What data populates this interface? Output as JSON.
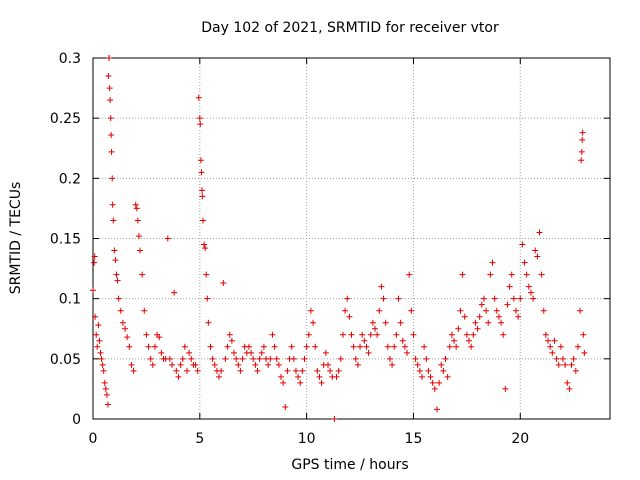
{
  "chart_data": {
    "type": "scatter",
    "title": "Day 102 of 2021, SRMTID for receiver vtor",
    "xlabel": "GPS time / hours",
    "ylabel": "SRMTID / TECUs",
    "xlim": [
      0,
      24.2
    ],
    "ylim": [
      0,
      0.3
    ],
    "x_ticks": [
      0,
      5,
      10,
      15,
      20
    ],
    "x_tick_labels": [
      "0",
      "5",
      "10",
      "15",
      "20"
    ],
    "y_ticks": [
      0,
      0.05,
      0.1,
      0.15,
      0.2,
      0.25,
      0.3
    ],
    "y_tick_labels": [
      "0",
      "0.05",
      "0.1",
      "0.15",
      "0.2",
      "0.25",
      "0.3"
    ],
    "grid": true,
    "marker": "+",
    "series": [
      {
        "name": "SRMTID",
        "color": "#e00000",
        "points": [
          [
            0.0,
            0.107
          ],
          [
            0.05,
            0.13
          ],
          [
            0.08,
            0.135
          ],
          [
            0.1,
            0.085
          ],
          [
            0.15,
            0.07
          ],
          [
            0.2,
            0.06
          ],
          [
            0.25,
            0.078
          ],
          [
            0.3,
            0.065
          ],
          [
            0.35,
            0.055
          ],
          [
            0.4,
            0.05
          ],
          [
            0.45,
            0.045
          ],
          [
            0.5,
            0.04
          ],
          [
            0.55,
            0.03
          ],
          [
            0.6,
            0.025
          ],
          [
            0.65,
            0.02
          ],
          [
            0.7,
            0.012
          ],
          [
            0.72,
            0.285
          ],
          [
            0.75,
            0.3
          ],
          [
            0.78,
            0.275
          ],
          [
            0.8,
            0.265
          ],
          [
            0.83,
            0.25
          ],
          [
            0.85,
            0.236
          ],
          [
            0.87,
            0.222
          ],
          [
            0.9,
            0.2
          ],
          [
            0.92,
            0.178
          ],
          [
            0.95,
            0.165
          ],
          [
            1.0,
            0.14
          ],
          [
            1.05,
            0.132
          ],
          [
            1.1,
            0.12
          ],
          [
            1.15,
            0.115
          ],
          [
            1.2,
            0.1
          ],
          [
            1.3,
            0.09
          ],
          [
            1.4,
            0.08
          ],
          [
            1.5,
            0.075
          ],
          [
            1.6,
            0.068
          ],
          [
            1.7,
            0.06
          ],
          [
            1.8,
            0.045
          ],
          [
            1.9,
            0.04
          ],
          [
            2.0,
            0.178
          ],
          [
            2.05,
            0.175
          ],
          [
            2.1,
            0.165
          ],
          [
            2.15,
            0.152
          ],
          [
            2.2,
            0.14
          ],
          [
            2.3,
            0.12
          ],
          [
            2.4,
            0.09
          ],
          [
            2.5,
            0.07
          ],
          [
            2.6,
            0.06
          ],
          [
            2.7,
            0.05
          ],
          [
            2.8,
            0.045
          ],
          [
            2.9,
            0.06
          ],
          [
            3.0,
            0.07
          ],
          [
            3.1,
            0.068
          ],
          [
            3.2,
            0.055
          ],
          [
            3.3,
            0.05
          ],
          [
            3.4,
            0.05
          ],
          [
            3.5,
            0.15
          ],
          [
            3.6,
            0.05
          ],
          [
            3.7,
            0.045
          ],
          [
            3.8,
            0.105
          ],
          [
            3.9,
            0.04
          ],
          [
            4.0,
            0.035
          ],
          [
            4.1,
            0.045
          ],
          [
            4.2,
            0.05
          ],
          [
            4.3,
            0.06
          ],
          [
            4.4,
            0.04
          ],
          [
            4.5,
            0.055
          ],
          [
            4.6,
            0.05
          ],
          [
            4.7,
            0.045
          ],
          [
            4.8,
            0.045
          ],
          [
            4.9,
            0.04
          ],
          [
            4.95,
            0.267
          ],
          [
            5.0,
            0.25
          ],
          [
            5.02,
            0.245
          ],
          [
            5.05,
            0.215
          ],
          [
            5.08,
            0.205
          ],
          [
            5.1,
            0.19
          ],
          [
            5.12,
            0.185
          ],
          [
            5.15,
            0.165
          ],
          [
            5.2,
            0.145
          ],
          [
            5.25,
            0.142
          ],
          [
            5.3,
            0.12
          ],
          [
            5.35,
            0.1
          ],
          [
            5.4,
            0.08
          ],
          [
            5.5,
            0.06
          ],
          [
            5.6,
            0.05
          ],
          [
            5.7,
            0.045
          ],
          [
            5.8,
            0.04
          ],
          [
            5.9,
            0.035
          ],
          [
            6.0,
            0.04
          ],
          [
            6.1,
            0.113
          ],
          [
            6.2,
            0.05
          ],
          [
            6.3,
            0.06
          ],
          [
            6.4,
            0.07
          ],
          [
            6.5,
            0.065
          ],
          [
            6.6,
            0.055
          ],
          [
            6.7,
            0.05
          ],
          [
            6.8,
            0.045
          ],
          [
            6.9,
            0.04
          ],
          [
            7.0,
            0.05
          ],
          [
            7.1,
            0.06
          ],
          [
            7.2,
            0.055
          ],
          [
            7.3,
            0.06
          ],
          [
            7.4,
            0.055
          ],
          [
            7.5,
            0.05
          ],
          [
            7.6,
            0.045
          ],
          [
            7.7,
            0.04
          ],
          [
            7.8,
            0.05
          ],
          [
            7.9,
            0.055
          ],
          [
            8.0,
            0.06
          ],
          [
            8.1,
            0.05
          ],
          [
            8.2,
            0.045
          ],
          [
            8.3,
            0.05
          ],
          [
            8.4,
            0.07
          ],
          [
            8.5,
            0.06
          ],
          [
            8.6,
            0.05
          ],
          [
            8.7,
            0.045
          ],
          [
            8.8,
            0.035
          ],
          [
            8.9,
            0.03
          ],
          [
            9.0,
            0.01
          ],
          [
            9.1,
            0.04
          ],
          [
            9.2,
            0.05
          ],
          [
            9.3,
            0.06
          ],
          [
            9.4,
            0.05
          ],
          [
            9.5,
            0.04
          ],
          [
            9.6,
            0.035
          ],
          [
            9.7,
            0.03
          ],
          [
            9.8,
            0.04
          ],
          [
            9.9,
            0.05
          ],
          [
            10.0,
            0.06
          ],
          [
            10.1,
            0.07
          ],
          [
            10.2,
            0.09
          ],
          [
            10.3,
            0.08
          ],
          [
            10.4,
            0.06
          ],
          [
            10.5,
            0.04
          ],
          [
            10.6,
            0.035
          ],
          [
            10.7,
            0.03
          ],
          [
            10.8,
            0.045
          ],
          [
            10.9,
            0.055
          ],
          [
            11.0,
            0.045
          ],
          [
            11.1,
            0.04
          ],
          [
            11.2,
            0.035
          ],
          [
            11.3,
            0.0
          ],
          [
            11.4,
            0.035
          ],
          [
            11.5,
            0.04
          ],
          [
            11.6,
            0.05
          ],
          [
            11.7,
            0.07
          ],
          [
            11.8,
            0.09
          ],
          [
            11.9,
            0.1
          ],
          [
            12.0,
            0.085
          ],
          [
            12.1,
            0.07
          ],
          [
            12.2,
            0.06
          ],
          [
            12.3,
            0.05
          ],
          [
            12.4,
            0.045
          ],
          [
            12.5,
            0.06
          ],
          [
            12.6,
            0.07
          ],
          [
            12.7,
            0.065
          ],
          [
            12.8,
            0.06
          ],
          [
            12.9,
            0.055
          ],
          [
            13.0,
            0.07
          ],
          [
            13.1,
            0.08
          ],
          [
            13.2,
            0.075
          ],
          [
            13.3,
            0.07
          ],
          [
            13.4,
            0.09
          ],
          [
            13.5,
            0.11
          ],
          [
            13.6,
            0.1
          ],
          [
            13.7,
            0.08
          ],
          [
            13.8,
            0.06
          ],
          [
            13.9,
            0.05
          ],
          [
            14.0,
            0.045
          ],
          [
            14.1,
            0.06
          ],
          [
            14.2,
            0.07
          ],
          [
            14.3,
            0.1
          ],
          [
            14.4,
            0.08
          ],
          [
            14.5,
            0.065
          ],
          [
            14.6,
            0.06
          ],
          [
            14.7,
            0.055
          ],
          [
            14.8,
            0.12
          ],
          [
            14.9,
            0.09
          ],
          [
            15.0,
            0.07
          ],
          [
            15.1,
            0.05
          ],
          [
            15.2,
            0.045
          ],
          [
            15.3,
            0.04
          ],
          [
            15.4,
            0.035
          ],
          [
            15.5,
            0.06
          ],
          [
            15.6,
            0.05
          ],
          [
            15.7,
            0.04
          ],
          [
            15.8,
            0.035
          ],
          [
            15.9,
            0.03
          ],
          [
            16.0,
            0.025
          ],
          [
            16.1,
            0.008
          ],
          [
            16.2,
            0.03
          ],
          [
            16.3,
            0.045
          ],
          [
            16.4,
            0.04
          ],
          [
            16.5,
            0.05
          ],
          [
            16.6,
            0.035
          ],
          [
            16.7,
            0.06
          ],
          [
            16.8,
            0.07
          ],
          [
            16.9,
            0.065
          ],
          [
            17.0,
            0.06
          ],
          [
            17.1,
            0.075
          ],
          [
            17.2,
            0.09
          ],
          [
            17.3,
            0.12
          ],
          [
            17.4,
            0.085
          ],
          [
            17.5,
            0.07
          ],
          [
            17.6,
            0.065
          ],
          [
            17.7,
            0.06
          ],
          [
            17.8,
            0.07
          ],
          [
            17.9,
            0.08
          ],
          [
            18.0,
            0.075
          ],
          [
            18.1,
            0.085
          ],
          [
            18.2,
            0.095
          ],
          [
            18.3,
            0.1
          ],
          [
            18.4,
            0.09
          ],
          [
            18.5,
            0.08
          ],
          [
            18.6,
            0.12
          ],
          [
            18.7,
            0.13
          ],
          [
            18.8,
            0.1
          ],
          [
            18.9,
            0.09
          ],
          [
            19.0,
            0.085
          ],
          [
            19.1,
            0.08
          ],
          [
            19.2,
            0.07
          ],
          [
            19.3,
            0.025
          ],
          [
            19.4,
            0.095
          ],
          [
            19.5,
            0.11
          ],
          [
            19.6,
            0.12
          ],
          [
            19.7,
            0.1
          ],
          [
            19.8,
            0.09
          ],
          [
            19.9,
            0.085
          ],
          [
            20.0,
            0.1
          ],
          [
            20.1,
            0.145
          ],
          [
            20.2,
            0.13
          ],
          [
            20.3,
            0.12
          ],
          [
            20.4,
            0.11
          ],
          [
            20.5,
            0.105
          ],
          [
            20.6,
            0.1
          ],
          [
            20.7,
            0.14
          ],
          [
            20.8,
            0.135
          ],
          [
            20.9,
            0.155
          ],
          [
            21.0,
            0.12
          ],
          [
            21.1,
            0.09
          ],
          [
            21.2,
            0.07
          ],
          [
            21.3,
            0.065
          ],
          [
            21.4,
            0.06
          ],
          [
            21.5,
            0.055
          ],
          [
            21.6,
            0.065
          ],
          [
            21.7,
            0.05
          ],
          [
            21.8,
            0.045
          ],
          [
            21.9,
            0.06
          ],
          [
            22.0,
            0.05
          ],
          [
            22.1,
            0.045
          ],
          [
            22.2,
            0.03
          ],
          [
            22.3,
            0.025
          ],
          [
            22.4,
            0.045
          ],
          [
            22.5,
            0.05
          ],
          [
            22.6,
            0.04
          ],
          [
            22.7,
            0.06
          ],
          [
            22.8,
            0.09
          ],
          [
            22.85,
            0.215
          ],
          [
            22.88,
            0.222
          ],
          [
            22.9,
            0.232
          ],
          [
            22.92,
            0.238
          ],
          [
            22.95,
            0.07
          ],
          [
            23.0,
            0.055
          ]
        ]
      }
    ]
  }
}
